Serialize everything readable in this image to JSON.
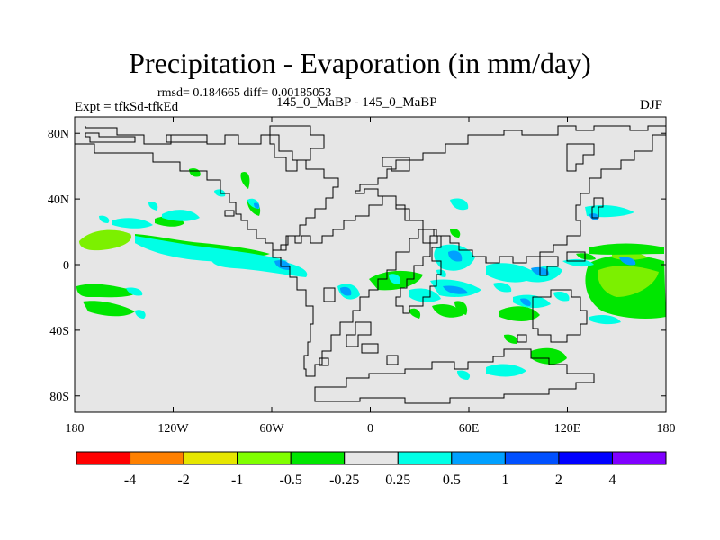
{
  "title": "Precipitation - Evaporation (in mm/day)",
  "stats_line": "rmsd= 0.184665 diff= 0.00185053",
  "experiment": "Expt = tfkSd-tfkEd",
  "comparison": "145_0_MaBP - 145_0_MaBP",
  "season": "DJF",
  "map": {
    "background_color": "#e6e6e6",
    "lat_ticks": [
      {
        "label": "80N",
        "lat": 80
      },
      {
        "label": "40N",
        "lat": 40
      },
      {
        "label": "0",
        "lat": 0
      },
      {
        "label": "40S",
        "lat": -40
      },
      {
        "label": "80S",
        "lat": -80
      }
    ],
    "lon_ticks": [
      {
        "label": "180",
        "lon": -180
      },
      {
        "label": "120W",
        "lon": -120
      },
      {
        "label": "60W",
        "lon": -60
      },
      {
        "label": "0",
        "lon": 0
      },
      {
        "label": "60E",
        "lon": 60
      },
      {
        "label": "120E",
        "lon": 120
      },
      {
        "label": "180",
        "lon": 180
      }
    ]
  },
  "colorbar": {
    "colors": [
      "#ff0000",
      "#ff8000",
      "#e6e600",
      "#80ff00",
      "#00e600",
      "#e6e6e6",
      "#00ffe6",
      "#00a0ff",
      "#0050ff",
      "#0000ff",
      "#8000ff"
    ],
    "labels": [
      "-4",
      "-2",
      "-1",
      "-0.5",
      "-0.25",
      "0.25",
      "0.5",
      "1",
      "2",
      "4"
    ]
  }
}
